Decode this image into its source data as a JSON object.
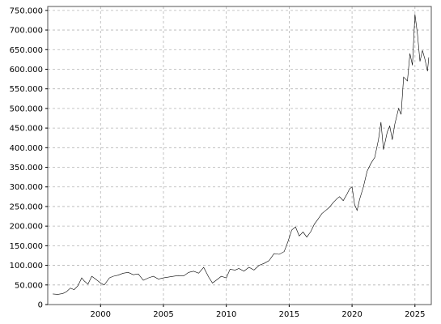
{
  "colors": {
    "background": "#ffffff",
    "plot_border": "#555555",
    "grid": "#b4b4b4",
    "line": "#000000",
    "text": "#000000"
  },
  "chart_data": {
    "type": "line",
    "title": "",
    "xlabel": "",
    "ylabel": "",
    "grid": true,
    "legend": "none",
    "xlim": [
      1995.8,
      2026.3
    ],
    "ylim": [
      0,
      760000
    ],
    "x_ticks": [
      2000,
      2005,
      2010,
      2015,
      2020,
      2025
    ],
    "x_tick_labels": [
      "2000",
      "2005",
      "2010",
      "2015",
      "2020",
      "2025"
    ],
    "y_ticks": [
      0,
      50000,
      100000,
      150000,
      200000,
      250000,
      300000,
      350000,
      400000,
      450000,
      500000,
      550000,
      600000,
      650000,
      700000,
      750000
    ],
    "y_tick_labels": [
      "0",
      "50.000",
      "100.000",
      "150.000",
      "200.000",
      "250.000",
      "300.000",
      "350.000",
      "400.000",
      "450.000",
      "500.000",
      "550.000",
      "600.000",
      "650.000",
      "700.000",
      "750.000"
    ],
    "series": [
      {
        "name": "",
        "x": [
          1996.2,
          1996.6,
          1997.0,
          1997.3,
          1997.6,
          1997.9,
          1998.2,
          1998.5,
          1998.7,
          1999.0,
          1999.3,
          1999.6,
          2000.0,
          2000.3,
          2000.7,
          2001.0,
          2001.4,
          2001.8,
          2002.2,
          2002.6,
          2003.0,
          2003.4,
          2003.8,
          2004.2,
          2004.6,
          2005.0,
          2005.4,
          2005.8,
          2006.2,
          2006.6,
          2007.0,
          2007.4,
          2007.8,
          2008.2,
          2008.6,
          2008.9,
          2009.2,
          2009.6,
          2010.0,
          2010.3,
          2010.7,
          2011.0,
          2011.4,
          2011.8,
          2012.2,
          2012.6,
          2013.0,
          2013.4,
          2013.8,
          2014.2,
          2014.6,
          2014.9,
          2015.2,
          2015.5,
          2015.8,
          2016.1,
          2016.4,
          2016.7,
          2017.0,
          2017.3,
          2017.6,
          2017.9,
          2018.2,
          2018.5,
          2018.8,
          2019.0,
          2019.3,
          2019.6,
          2019.8,
          2020.0,
          2020.2,
          2020.4,
          2020.6,
          2020.9,
          2021.2,
          2021.5,
          2021.8,
          2022.1,
          2022.3,
          2022.5,
          2022.8,
          2023.0,
          2023.2,
          2023.4,
          2023.7,
          2023.9,
          2024.1,
          2024.4,
          2024.6,
          2024.8,
          2025.0,
          2025.2,
          2025.4,
          2025.6,
          2025.8,
          2026.0,
          2026.1
        ],
        "values": [
          27000,
          26000,
          28000,
          33000,
          42000,
          38000,
          48000,
          68000,
          60000,
          52000,
          72000,
          65000,
          55000,
          50000,
          68000,
          72000,
          75000,
          80000,
          82000,
          76000,
          78000,
          62000,
          68000,
          72000,
          65000,
          68000,
          70000,
          72000,
          74000,
          73000,
          82000,
          85000,
          80000,
          95000,
          70000,
          55000,
          62000,
          72000,
          68000,
          90000,
          88000,
          92000,
          85000,
          95000,
          88000,
          100000,
          105000,
          112000,
          130000,
          128000,
          135000,
          160000,
          190000,
          198000,
          175000,
          185000,
          172000,
          185000,
          205000,
          218000,
          232000,
          240000,
          248000,
          260000,
          270000,
          275000,
          265000,
          282000,
          295000,
          300000,
          255000,
          240000,
          268000,
          300000,
          340000,
          360000,
          375000,
          420000,
          465000,
          395000,
          440000,
          455000,
          420000,
          460000,
          500000,
          485000,
          580000,
          570000,
          640000,
          610000,
          740000,
          690000,
          620000,
          648000,
          625000,
          595000,
          630000
        ]
      }
    ]
  }
}
